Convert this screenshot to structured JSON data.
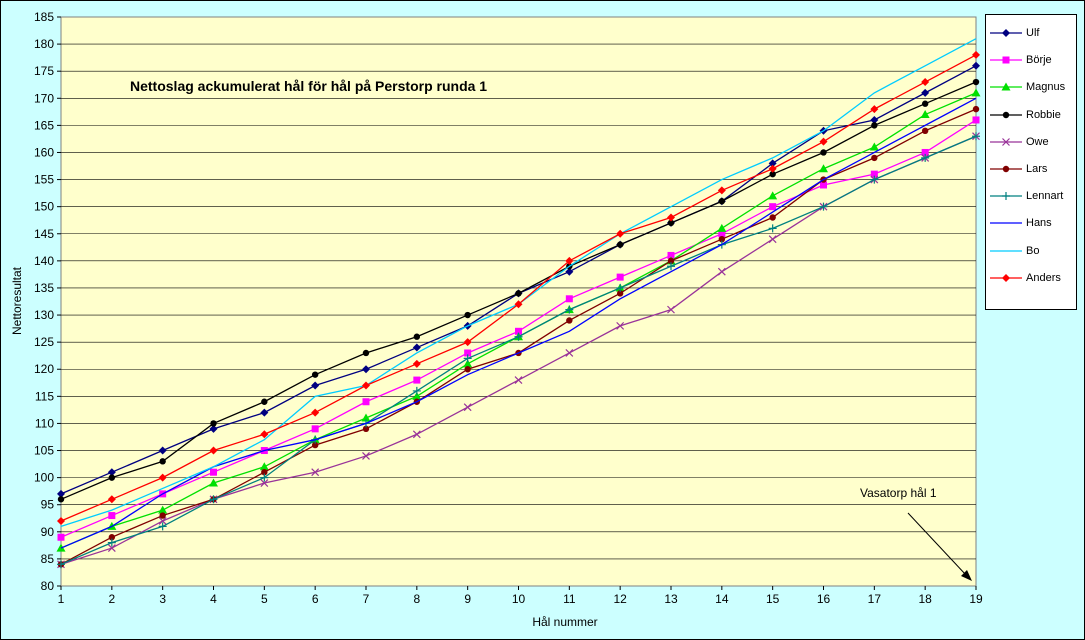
{
  "chart_data": {
    "type": "line",
    "title": "Nettoslag ackumulerat hål för hål på Perstorp runda 1",
    "xlabel": "Hål nummer",
    "ylabel": "Nettoresultat",
    "x": [
      1,
      2,
      3,
      4,
      5,
      6,
      7,
      8,
      9,
      10,
      11,
      12,
      13,
      14,
      15,
      16,
      17,
      18,
      19
    ],
    "ylim": [
      80,
      185
    ],
    "ytick_step": 5,
    "grid": "horizontal",
    "legend": "right",
    "annotation": "Vasatorp hål 1",
    "series": [
      {
        "name": "Ulf",
        "color": "#000080",
        "marker": "diamond",
        "values": [
          97,
          101,
          105,
          109,
          112,
          117,
          120,
          124,
          128,
          134,
          138,
          143,
          147,
          151,
          158,
          164,
          166,
          171,
          176
        ]
      },
      {
        "name": "Börje",
        "color": "#ff00ff",
        "marker": "square",
        "values": [
          89,
          93,
          97,
          101,
          105,
          109,
          114,
          118,
          123,
          127,
          133,
          137,
          141,
          145,
          150,
          154,
          156,
          160,
          166
        ]
      },
      {
        "name": "Magnus",
        "color": "#00e000",
        "marker": "triangle",
        "values": [
          87,
          91,
          94,
          99,
          102,
          107,
          111,
          115,
          121,
          126,
          131,
          135,
          140,
          146,
          152,
          157,
          161,
          167,
          171
        ]
      },
      {
        "name": "Robbie",
        "color": "#000000",
        "marker": "circle",
        "values": [
          96,
          100,
          103,
          110,
          114,
          119,
          123,
          126,
          130,
          134,
          139,
          143,
          147,
          151,
          156,
          160,
          165,
          169,
          173
        ]
      },
      {
        "name": "Owe",
        "color": "#993399",
        "marker": "x",
        "values": [
          84,
          87,
          92,
          96,
          99,
          101,
          104,
          108,
          113,
          118,
          123,
          128,
          131,
          138,
          144,
          150,
          155,
          159,
          163
        ]
      },
      {
        "name": "Lars",
        "color": "#800000",
        "marker": "circle",
        "values": [
          84,
          89,
          93,
          96,
          101,
          106,
          109,
          114,
          120,
          123,
          129,
          134,
          140,
          144,
          148,
          155,
          159,
          164,
          168
        ]
      },
      {
        "name": "Lennart",
        "color": "#008080",
        "marker": "plus",
        "values": [
          84,
          88,
          91,
          96,
          100,
          107,
          110,
          116,
          122,
          126,
          131,
          135,
          139,
          143,
          146,
          150,
          155,
          159,
          163
        ]
      },
      {
        "name": "Hans",
        "color": "#0000ff",
        "marker": "none",
        "values": [
          87,
          91,
          97,
          102,
          105,
          107,
          110,
          114,
          119,
          123,
          127,
          133,
          138,
          143,
          149,
          155,
          160,
          165,
          170
        ]
      },
      {
        "name": "Bo",
        "color": "#00ccff",
        "marker": "none",
        "values": [
          91,
          94,
          98,
          102,
          107,
          115,
          117,
          123,
          128,
          132,
          139,
          145,
          150,
          155,
          159,
          164,
          171,
          176,
          181
        ]
      },
      {
        "name": "Anders",
        "color": "#ff0000",
        "marker": "diamond",
        "values": [
          92,
          96,
          100,
          105,
          108,
          112,
          117,
          121,
          125,
          132,
          140,
          145,
          148,
          153,
          157,
          162,
          168,
          173,
          178
        ]
      }
    ]
  }
}
